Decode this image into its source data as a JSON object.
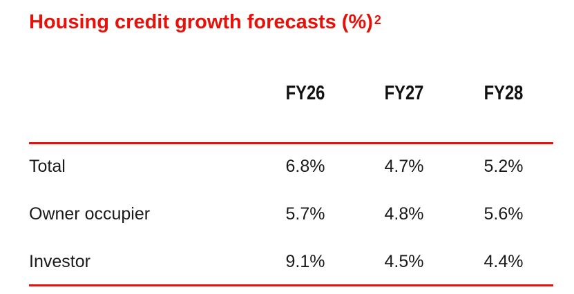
{
  "title": {
    "text": "Housing credit growth forecasts (%)",
    "footnote": "2"
  },
  "columns": [
    "FY26",
    "FY27",
    "FY28"
  ],
  "rows": [
    {
      "label": "Total",
      "values": [
        "6.8%",
        "4.7%",
        "5.2%"
      ]
    },
    {
      "label": "Owner occupier",
      "values": [
        "5.7%",
        "4.8%",
        "5.6%"
      ]
    },
    {
      "label": "Investor",
      "values": [
        "9.1%",
        "4.5%",
        "4.4%"
      ]
    }
  ],
  "colors": {
    "accent": "#e3120b",
    "text": "#1a1a1a"
  }
}
